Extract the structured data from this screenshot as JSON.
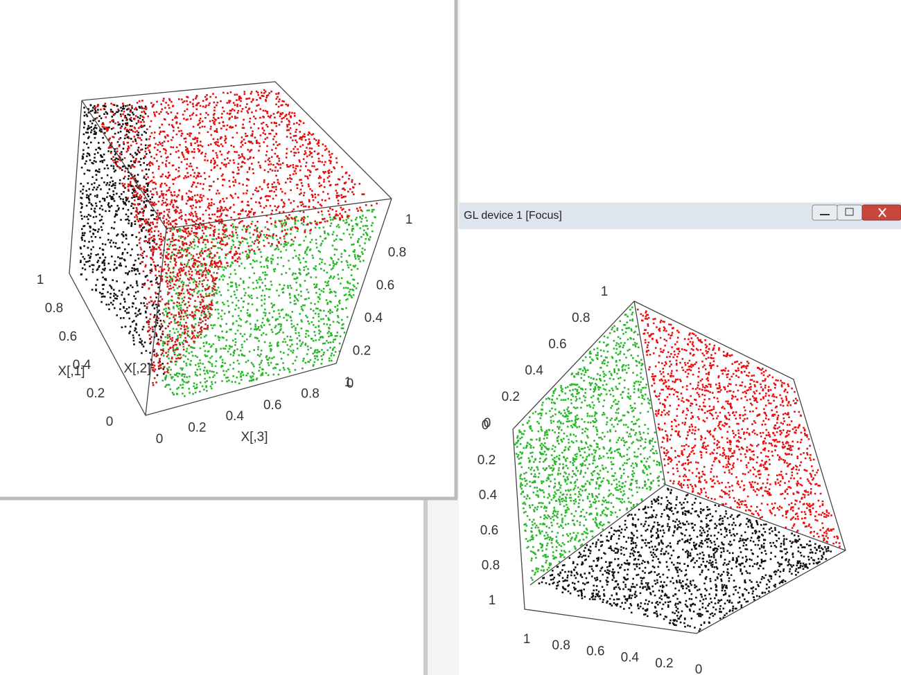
{
  "left_window": {
    "axes": [
      {
        "label": "X[,1]",
        "ticks": [
          1,
          0.8,
          0.6,
          0.4,
          0.2,
          0
        ]
      },
      {
        "label": "X[,2]",
        "ticks": [
          1,
          0.8,
          0.6,
          0.4,
          0.2,
          0
        ]
      },
      {
        "label": "X[,3]",
        "ticks": [
          0,
          0.2,
          0.4,
          0.6,
          0.8,
          1
        ]
      }
    ]
  },
  "right_window": {
    "title": "GL device 1 [Focus]",
    "axes": [
      {
        "ticks": [
          1,
          0.8,
          0.6,
          0.4,
          0.2,
          0
        ]
      },
      {
        "ticks": [
          0,
          0.2,
          0.4,
          0.6,
          0.8,
          1
        ]
      },
      {
        "ticks": [
          1,
          0.8,
          0.6,
          0.4,
          0.2,
          0
        ]
      }
    ]
  }
}
